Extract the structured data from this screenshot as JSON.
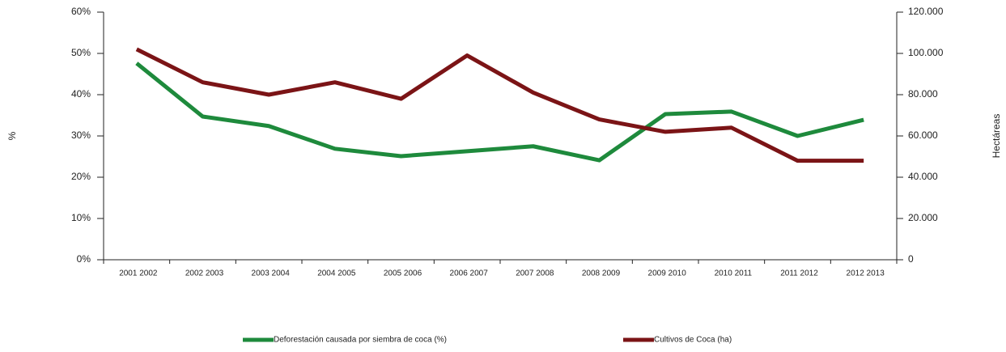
{
  "chart_data": {
    "type": "line",
    "categories": [
      "2001 2002",
      "2002 2003",
      "2003 2004",
      "2004 2005",
      "2005 2006",
      "2006 2007",
      "2007 2008",
      "2008 2009",
      "2009 2010",
      "2010 2011",
      "2011 2012",
      "2012 2013"
    ],
    "series": [
      {
        "name": "Deforestación causada por siembra de coca (%)",
        "color": "#1e8a3c",
        "values": [
          47.6,
          34.7,
          32.4,
          26.9,
          25.1,
          26.3,
          27.5,
          24.1,
          35.3,
          35.9,
          30.0,
          33.9
        ]
      },
      {
        "name": "Cultivos de Coca (ha)",
        "color": "#7b1416",
        "axis": "y2",
        "values": [
          102000,
          86000,
          80000,
          86000,
          78000,
          99000,
          81000,
          68000,
          62000,
          64000,
          48000,
          48000
        ]
      }
    ],
    "ylabel": "%",
    "y2label": "Hectáreas",
    "ylim": [
      0,
      60
    ],
    "yticks": [
      {
        "value": 0,
        "label": "0%"
      },
      {
        "value": 10,
        "label": "10%"
      },
      {
        "value": 20,
        "label": "20%"
      },
      {
        "value": 30,
        "label": "30%"
      },
      {
        "value": 40,
        "label": "40%"
      },
      {
        "value": 50,
        "label": "50%"
      },
      {
        "value": 60,
        "label": "60%"
      }
    ],
    "y2lim": [
      0,
      120000
    ],
    "y2ticks": [
      0,
      {
        "value": 20000,
        "label": "20.000"
      },
      {
        "value": 40000,
        "label": "40.000"
      },
      {
        "value": 60000,
        "label": "60.000"
      },
      {
        "value": 80000,
        "label": "80.000"
      },
      {
        "value": 100000,
        "label": "100.000"
      },
      {
        "value": 120000,
        "label": "120.000"
      }
    ],
    "grid": false,
    "legend": "bottom"
  }
}
